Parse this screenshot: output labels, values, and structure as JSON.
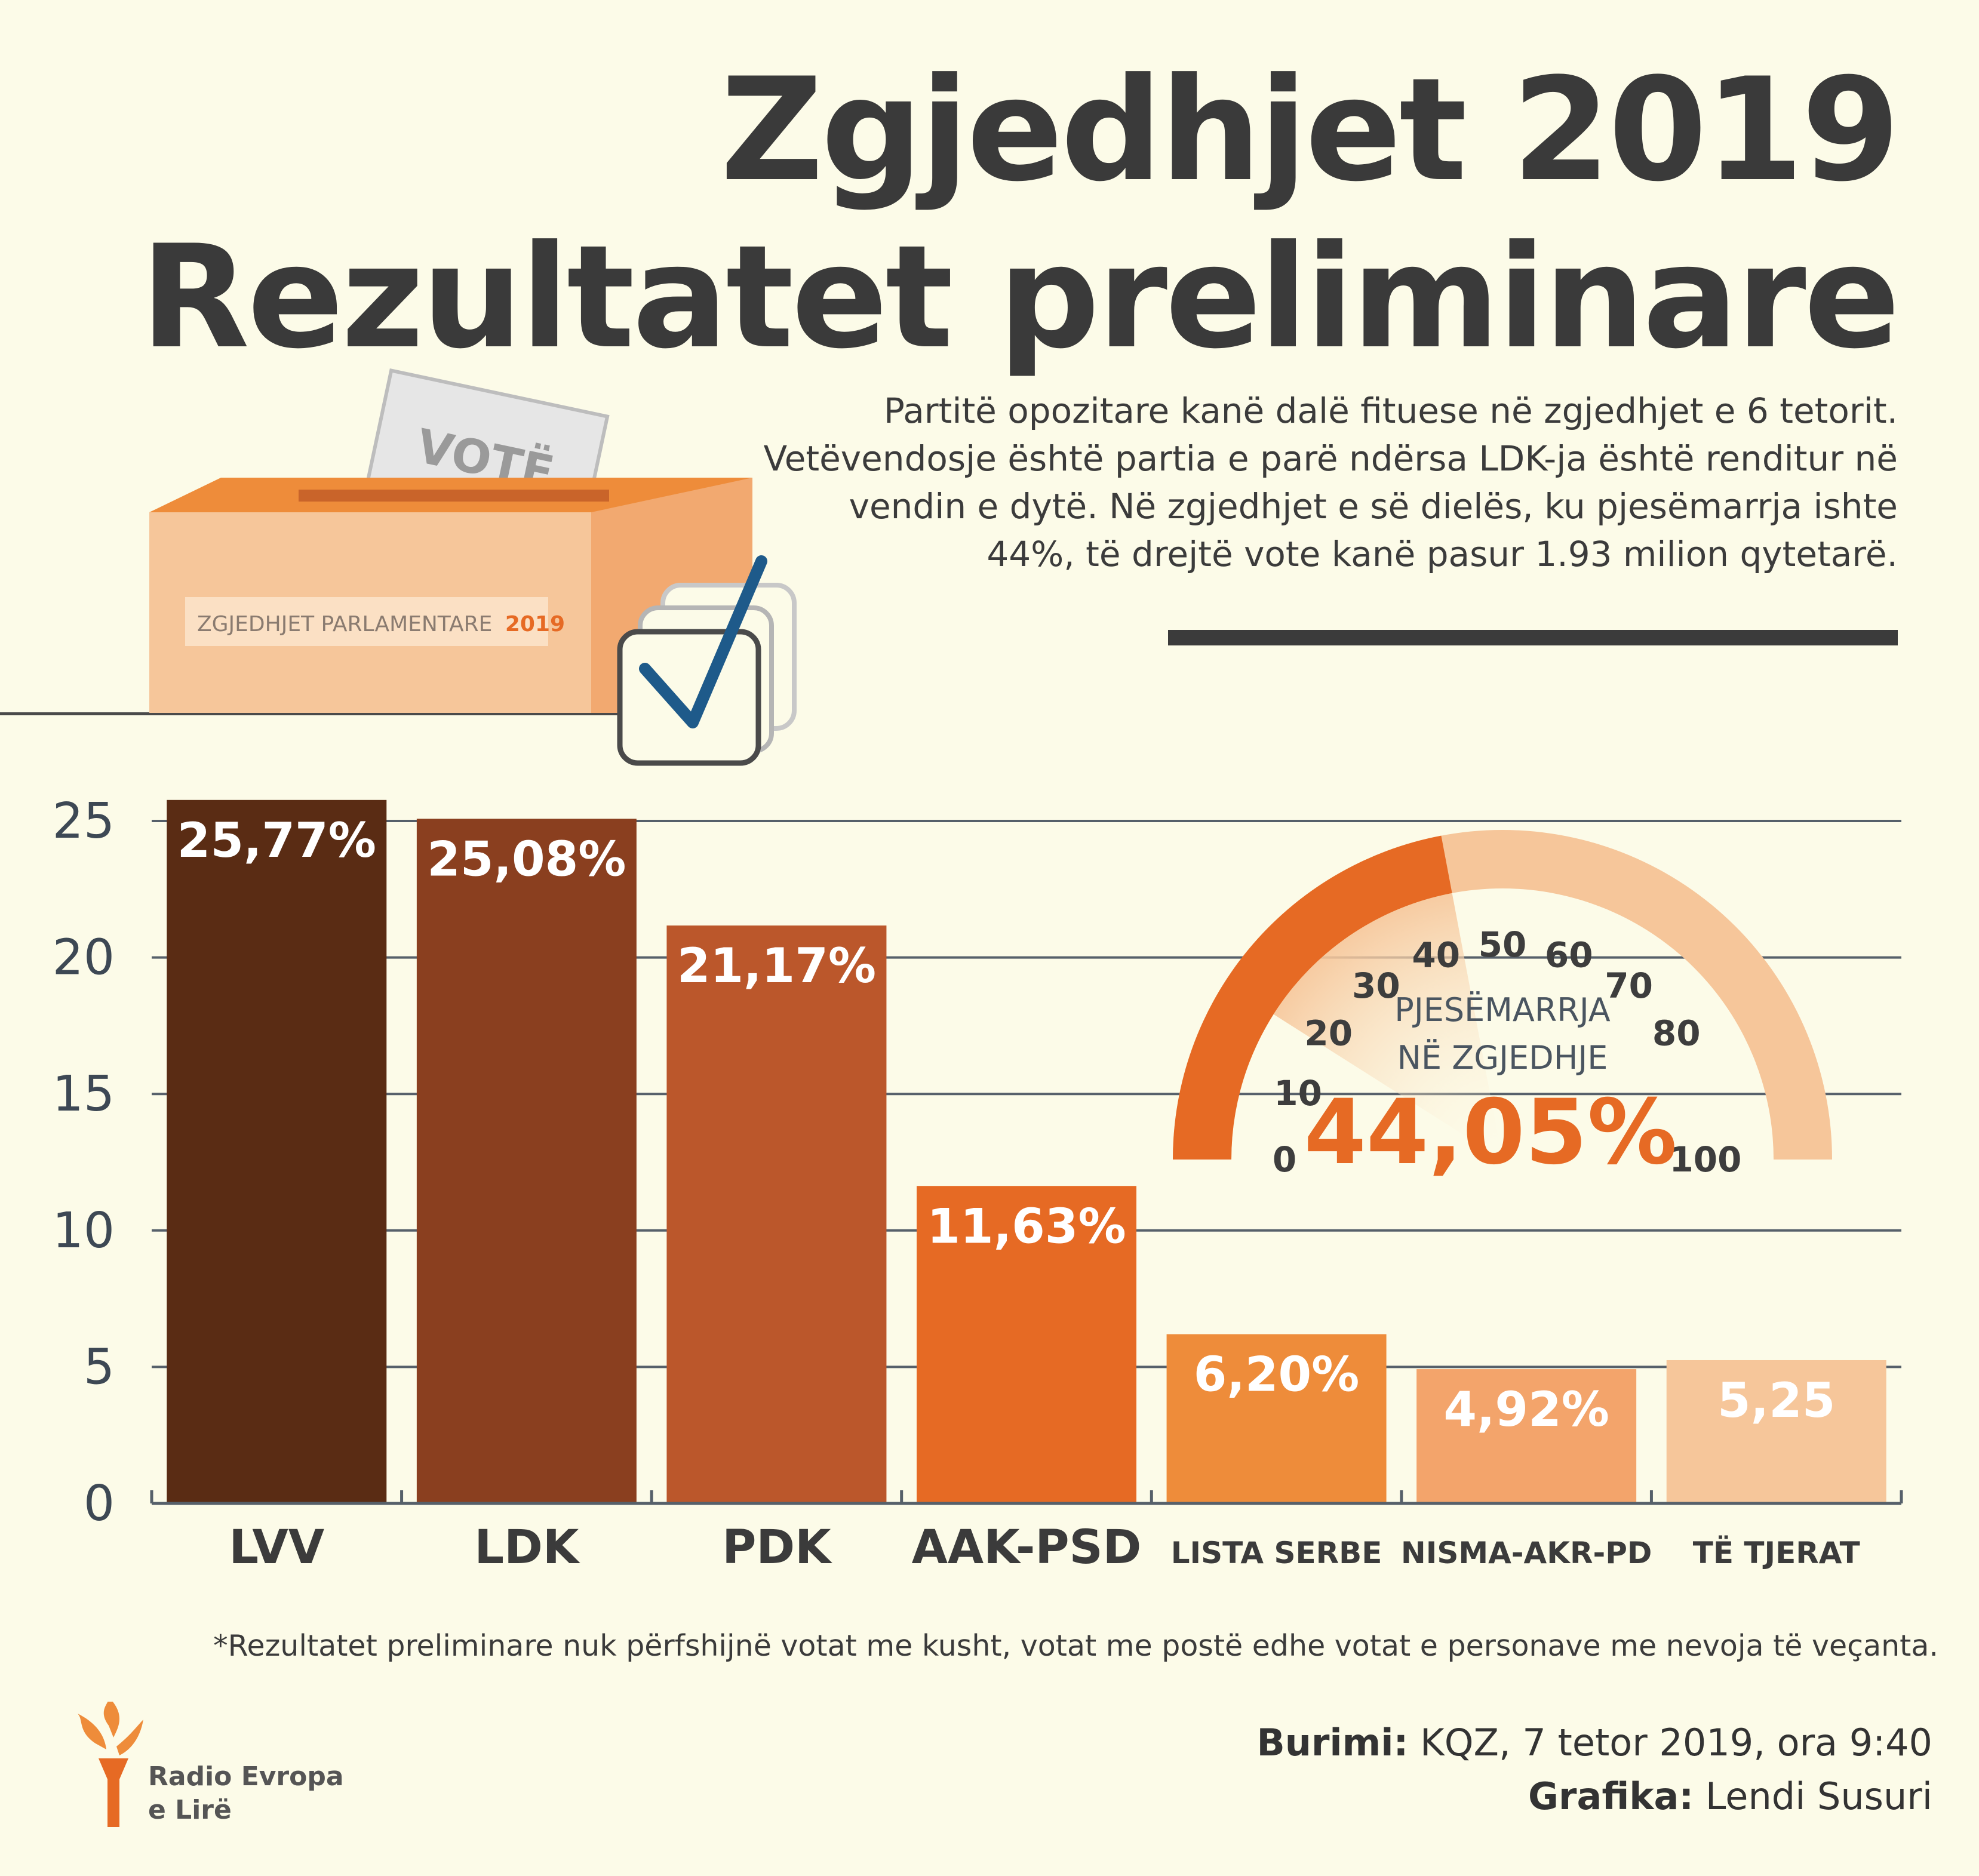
{
  "header": {
    "title_line1": "Zgjedhjet 2019",
    "title_line2": "Rezultatet preliminare",
    "intro": "Partitë opozitare kanë dalë fituese në zgjedhjet e 6 tetorit. Vetëvendosje është partia e parë ndërsa LDK-ja është renditur në vendin e dytë. Në zgjedhjet e së dielës, ku pjesëmarrja ishte 44%, të drejtë vote kanë pasur 1.93 milion qytetarë."
  },
  "illustration": {
    "ballot_text": "VOTË",
    "box_label_prefix": "ZGJEDHJET PARLAMENTARE",
    "box_label_year": "2019"
  },
  "chart_data": [
    {
      "type": "bar",
      "categories": [
        "LVV",
        "LDK",
        "PDK",
        "AAK-PSD",
        "LISTA SERBE",
        "NISMA-AKR-PD",
        "TË TJERAT"
      ],
      "values": [
        25.77,
        25.08,
        21.17,
        11.63,
        6.2,
        4.92,
        5.25
      ],
      "data_labels": [
        "25,77%",
        "25,08%",
        "21,17%",
        "11,63%",
        "6,20%",
        "4,92%",
        "5,25"
      ],
      "colors": [
        "#5a2c14",
        "#8a3f1f",
        "#bb572b",
        "#e66a24",
        "#ee8c3a",
        "#f3a46b",
        "#f6c69a"
      ],
      "yticks": [
        0,
        5,
        10,
        15,
        20,
        25
      ],
      "ylim": [
        0,
        26.5
      ],
      "grid": true
    },
    {
      "type": "gauge",
      "label_line1": "PJESËMARRJA",
      "label_line2": "NË ZGJEDHJE",
      "value": 44.05,
      "value_label": "44,05%",
      "range": [
        0,
        100
      ],
      "ticks": [
        "0",
        "10",
        "20",
        "30",
        "40",
        "50",
        "60",
        "70",
        "80",
        "100"
      ],
      "colors": {
        "filled": "#e66a24",
        "empty": "#f6c69a"
      }
    }
  ],
  "footer": {
    "footnote": "*Rezultatet preliminare nuk përfshijnë votat me kusht, votat me postë edhe votat e personave me nevoja të veçanta.",
    "source_label": "Burimi:",
    "source_value": " KQZ, 7 tetor 2019, ora 9:40",
    "credit_label": "Grafika:",
    "credit_value": " Lendi Susuri",
    "logo_line1": "Radio Evropa",
    "logo_line2": "e Lirë"
  }
}
